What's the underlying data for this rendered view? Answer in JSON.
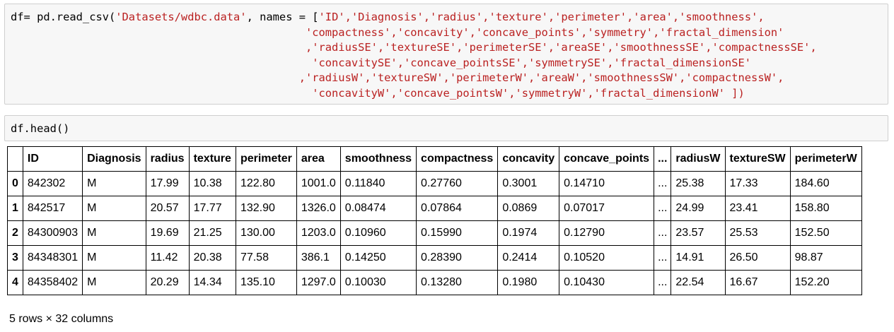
{
  "cells": {
    "read_csv": {
      "line1": {
        "prefix": "df= pd.read_csv(",
        "path": "'Datasets/wdbc.data'",
        "mid": ", names = [",
        "items": "'ID','Diagnosis','radius','texture','perimeter','area','smoothness',"
      },
      "lines": [
        "                                             'compactness','concavity','concave_points','symmetry','fractal_dimension'",
        "                                             ,'radiusSE','textureSE','perimeterSE','areaSE','smoothnessSE','compactnessSE',",
        "                                              'concavitySE','concave_pointsSE','symmetrySE','fractal_dimensionSE'",
        "                                            ,'radiusW','textureSW','perimeterW','areaW','smoothnessSW','compactnessW',",
        "                                              'concavityW','concave_pointsW','symmetryW','fractal_dimensionW' ])"
      ]
    },
    "head": {
      "code": "df.head()"
    }
  },
  "table": {
    "columns": [
      "",
      "ID",
      "Diagnosis",
      "radius",
      "texture",
      "perimeter",
      "area",
      "smoothness",
      "compactness",
      "concavity",
      "concave_points",
      "...",
      "radiusW",
      "textureSW",
      "perimeterW"
    ],
    "rows": [
      [
        "0",
        "842302",
        "M",
        "17.99",
        "10.38",
        "122.80",
        "1001.0",
        "0.11840",
        "0.27760",
        "0.3001",
        "0.14710",
        "...",
        "25.38",
        "17.33",
        "184.60"
      ],
      [
        "1",
        "842517",
        "M",
        "20.57",
        "17.77",
        "132.90",
        "1326.0",
        "0.08474",
        "0.07864",
        "0.0869",
        "0.07017",
        "...",
        "24.99",
        "23.41",
        "158.80"
      ],
      [
        "2",
        "84300903",
        "M",
        "19.69",
        "21.25",
        "130.00",
        "1203.0",
        "0.10960",
        "0.15990",
        "0.1974",
        "0.12790",
        "...",
        "23.57",
        "25.53",
        "152.50"
      ],
      [
        "3",
        "84348301",
        "M",
        "11.42",
        "20.38",
        "77.58",
        "386.1",
        "0.14250",
        "0.28390",
        "0.2414",
        "0.10520",
        "...",
        "14.91",
        "26.50",
        "98.87"
      ],
      [
        "4",
        "84358402",
        "M",
        "20.29",
        "14.34",
        "135.10",
        "1297.0",
        "0.10030",
        "0.13280",
        "0.1980",
        "0.10430",
        "...",
        "22.54",
        "16.67",
        "152.20"
      ]
    ]
  },
  "footer": "5 rows × 32 columns"
}
